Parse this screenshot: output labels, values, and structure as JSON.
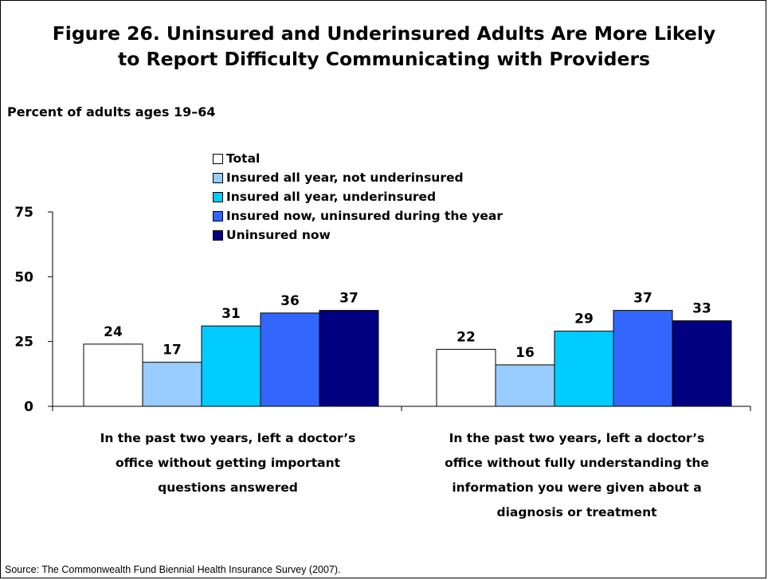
{
  "title": {
    "line1": "Figure 26. Uninsured and Underinsured Adults Are More Likely",
    "line2": "to Report Difficulty Communicating with Providers"
  },
  "subtitle": "Percent of adults ages 19–64",
  "source": "Source: The Commonwealth Fund Biennial Health Insurance Survey (2007).",
  "chart_data": {
    "type": "bar",
    "title": "Figure 26. Uninsured and Underinsured Adults Are More Likely to Report Difficulty Communicating with Providers",
    "ylabel": "Percent of adults ages 19–64",
    "xlabel": "",
    "ylim": [
      0,
      75
    ],
    "yticks": [
      0,
      25,
      50,
      75
    ],
    "grid": false,
    "legend_position": "top-center",
    "categories": [
      "In the past two years, left a doctor’s office without getting important questions answered",
      "In the past two years, left a doctor’s office without fully understanding the information you were given about a diagnosis or treatment"
    ],
    "category_label_lines": [
      [
        "In the past two years, left a doctor’s",
        "office without getting important",
        "questions answered"
      ],
      [
        "In the past two years, left a doctor’s",
        "office without fully understanding the",
        "information you were given about a",
        "diagnosis or treatment"
      ]
    ],
    "series": [
      {
        "name": "Total",
        "color": "#ffffff",
        "values": [
          24,
          22
        ]
      },
      {
        "name": "Insured all year, not underinsured",
        "color": "#99ccff",
        "values": [
          17,
          16
        ]
      },
      {
        "name": "Insured all year, underinsured",
        "color": "#00ccff",
        "values": [
          31,
          29
        ]
      },
      {
        "name": "Insured now, uninsured during the year",
        "color": "#3366ff",
        "values": [
          36,
          37
        ]
      },
      {
        "name": "Uninsured now",
        "color": "#000080",
        "values": [
          37,
          33
        ]
      }
    ]
  }
}
